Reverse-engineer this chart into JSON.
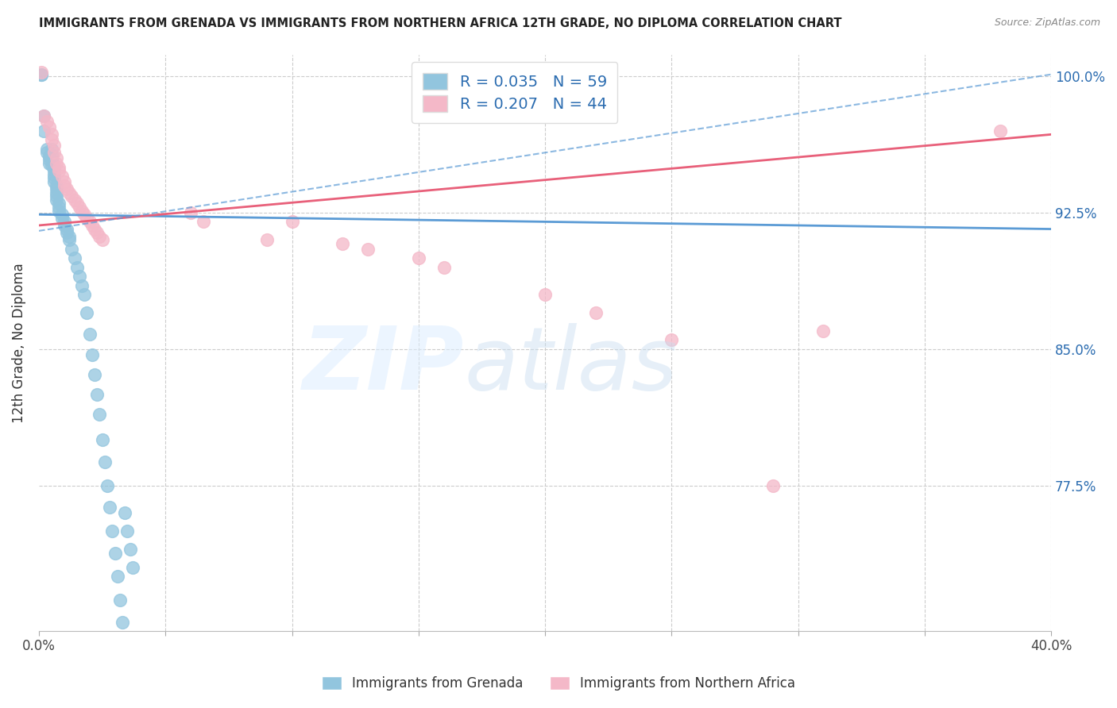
{
  "title": "IMMIGRANTS FROM GRENADA VS IMMIGRANTS FROM NORTHERN AFRICA 12TH GRADE, NO DIPLOMA CORRELATION CHART",
  "source": "Source: ZipAtlas.com",
  "ylabel_label": "12th Grade, No Diploma",
  "legend_grenada": "Immigrants from Grenada",
  "legend_n_africa": "Immigrants from Northern Africa",
  "R_grenada": 0.035,
  "N_grenada": 59,
  "R_n_africa": 0.207,
  "N_n_africa": 44,
  "color_grenada": "#92c5de",
  "color_n_africa": "#f4b8c8",
  "color_grenada_line": "#5b9bd5",
  "color_n_africa_line": "#e8607a",
  "color_axis_labels": "#2b6cb0",
  "xmin": 0.0,
  "xmax": 0.4,
  "ymin": 0.695,
  "ymax": 1.012,
  "grenada_x": [
    0.001,
    0.001,
    0.002,
    0.002,
    0.003,
    0.003,
    0.004,
    0.004,
    0.004,
    0.005,
    0.005,
    0.005,
    0.005,
    0.006,
    0.006,
    0.006,
    0.006,
    0.006,
    0.007,
    0.007,
    0.007,
    0.007,
    0.007,
    0.008,
    0.008,
    0.008,
    0.009,
    0.009,
    0.01,
    0.01,
    0.011,
    0.011,
    0.012,
    0.012,
    0.013,
    0.014,
    0.015,
    0.016,
    0.017,
    0.018,
    0.019,
    0.02,
    0.021,
    0.022,
    0.023,
    0.024,
    0.025,
    0.026,
    0.027,
    0.028,
    0.029,
    0.03,
    0.031,
    0.032,
    0.033,
    0.034,
    0.035,
    0.036,
    0.037
  ],
  "grenada_y": [
    1.001,
    1.001,
    0.978,
    0.97,
    0.96,
    0.958,
    0.956,
    0.954,
    0.952,
    0.96,
    0.957,
    0.954,
    0.951,
    0.95,
    0.948,
    0.946,
    0.944,
    0.942,
    0.94,
    0.938,
    0.936,
    0.934,
    0.932,
    0.93,
    0.928,
    0.926,
    0.924,
    0.922,
    0.92,
    0.918,
    0.916,
    0.914,
    0.912,
    0.91,
    0.905,
    0.9,
    0.895,
    0.89,
    0.885,
    0.88,
    0.87,
    0.858,
    0.847,
    0.836,
    0.825,
    0.814,
    0.8,
    0.788,
    0.775,
    0.763,
    0.75,
    0.738,
    0.725,
    0.712,
    0.7,
    0.76,
    0.75,
    0.74,
    0.73
  ],
  "n_africa_x": [
    0.001,
    0.002,
    0.003,
    0.004,
    0.005,
    0.005,
    0.006,
    0.006,
    0.007,
    0.007,
    0.008,
    0.008,
    0.009,
    0.01,
    0.01,
    0.011,
    0.012,
    0.013,
    0.014,
    0.015,
    0.016,
    0.017,
    0.018,
    0.019,
    0.02,
    0.021,
    0.022,
    0.023,
    0.024,
    0.025,
    0.06,
    0.065,
    0.09,
    0.1,
    0.12,
    0.13,
    0.15,
    0.16,
    0.2,
    0.22,
    0.25,
    0.29,
    0.31,
    0.38
  ],
  "n_africa_y": [
    1.002,
    0.978,
    0.975,
    0.972,
    0.968,
    0.965,
    0.962,
    0.958,
    0.955,
    0.952,
    0.95,
    0.948,
    0.945,
    0.942,
    0.94,
    0.938,
    0.936,
    0.934,
    0.932,
    0.93,
    0.928,
    0.926,
    0.924,
    0.922,
    0.92,
    0.918,
    0.916,
    0.914,
    0.912,
    0.91,
    0.925,
    0.92,
    0.91,
    0.92,
    0.908,
    0.905,
    0.9,
    0.895,
    0.88,
    0.87,
    0.855,
    0.775,
    0.86,
    0.97
  ],
  "grenada_line_x": [
    0.0,
    0.4
  ],
  "grenada_line_y": [
    0.924,
    0.916
  ],
  "n_africa_line_x": [
    0.0,
    0.4
  ],
  "n_africa_line_y": [
    0.918,
    0.968
  ],
  "dashed_line_x": [
    0.0,
    0.4
  ],
  "dashed_line_y": [
    0.915,
    1.001
  ],
  "ytick_positions": [
    0.775,
    0.85,
    0.925,
    1.0
  ],
  "ytick_labels": [
    "77.5%",
    "85.0%",
    "92.5%",
    "100.0%"
  ],
  "xtick_positions": [
    0.0,
    0.05,
    0.1,
    0.15,
    0.2,
    0.25,
    0.3,
    0.35,
    0.4
  ],
  "grid_color": "#cccccc",
  "background": "#ffffff"
}
